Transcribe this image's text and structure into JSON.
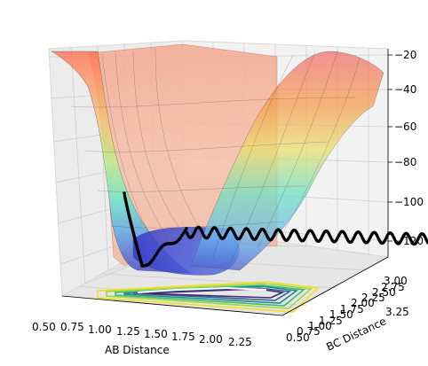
{
  "chart_data": {
    "type": "surface3d",
    "description_series": [
      {
        "name": "",
        "kind": "surface",
        "colormap": "jet"
      },
      {
        "name": "",
        "kind": "contour",
        "colormap": "viridis"
      },
      {
        "name": "",
        "kind": "trajectory",
        "color": "#000000"
      }
    ],
    "axes": {
      "x": {
        "label": "AB Distance",
        "range": [
          0.5,
          2.5
        ],
        "ticks": [
          "0.50",
          "0.75",
          "1.00",
          "1.25",
          "1.50",
          "1.75",
          "2.00",
          "2.25"
        ]
      },
      "y": {
        "label": "BC Distance",
        "range": [
          0.5,
          3.25
        ],
        "ticks": [
          "0.50",
          "0.75",
          "1.00",
          "1.25",
          "1.50",
          "1.75",
          "2.00",
          "2.25",
          "2.50",
          "2.75",
          "3.00",
          "3.25"
        ],
        "tick_labels_shown": [
          "0.50",
          "0.75",
          "1.00",
          "1.25",
          "1.50",
          "1.75",
          "2.00",
          "2.25",
          "2.50",
          "2.75",
          "3.00",
          "3.25"
        ]
      },
      "z": {
        "label": "",
        "range": [
          -130,
          -20
        ],
        "ticks": [
          "−20",
          "−40",
          "−60",
          "−80",
          "−100",
          "−120"
        ]
      }
    },
    "surface_min": -125,
    "trajectory_end_value": -108
  },
  "colors": {
    "pane": "#f2f2f2",
    "grid": "#c8c8c8",
    "trajectory": "#000000"
  }
}
